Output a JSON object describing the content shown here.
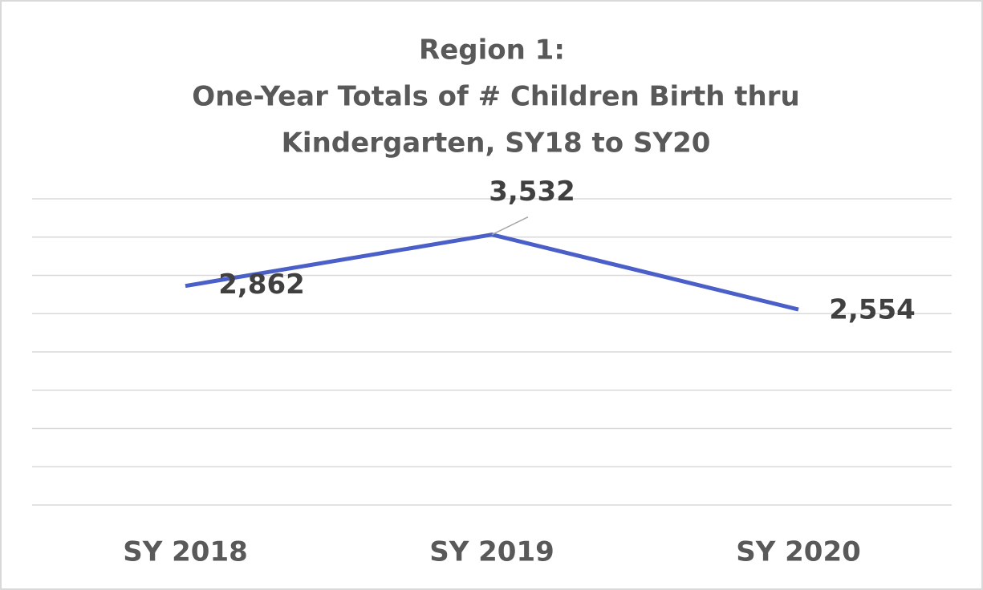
{
  "chart_data": {
    "type": "line",
    "title": [
      "Region 1:",
      "One-Year Totals of # Children Birth thru",
      "Kindergarten, SY18 to SY20"
    ],
    "categories": [
      "SY 2018",
      "SY 2019",
      "SY 2020"
    ],
    "series": [
      {
        "color": "#4a5fc8",
        "values": [
          2862,
          3532,
          2554
        ],
        "value_labels": [
          "2,862",
          "3,532",
          "2,554"
        ]
      }
    ],
    "ylim": [
      0,
      4000
    ],
    "yticks": [
      0,
      500,
      1000,
      1500,
      2000,
      2500,
      3000,
      3500,
      4000
    ],
    "grid": true
  }
}
